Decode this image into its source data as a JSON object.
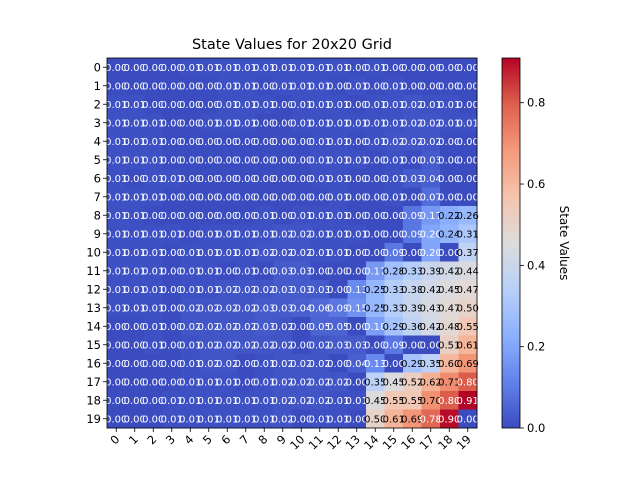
{
  "chart_data": {
    "type": "heatmap",
    "title": "State Values for 20x20 Grid",
    "x_ticks": [
      "0",
      "1",
      "2",
      "3",
      "4",
      "5",
      "6",
      "7",
      "8",
      "9",
      "10",
      "11",
      "12",
      "13",
      "14",
      "15",
      "16",
      "17",
      "18",
      "19"
    ],
    "y_ticks": [
      "0",
      "1",
      "2",
      "3",
      "4",
      "5",
      "6",
      "7",
      "8",
      "9",
      "10",
      "11",
      "12",
      "13",
      "14",
      "15",
      "16",
      "17",
      "18",
      "19"
    ],
    "colormap": "coolwarm",
    "vmin": 0.0,
    "vmax": 0.91,
    "colorbar": {
      "label": "State Values",
      "ticks": [
        0.0,
        0.2,
        0.4,
        0.6,
        0.8
      ],
      "tick_labels": [
        "0.0",
        "0.2",
        "0.4",
        "0.6",
        "0.8"
      ],
      "placement": "right"
    },
    "values": [
      [
        0.0,
        0.0,
        0.0,
        0.0,
        0.01,
        0.01,
        0.01,
        0.01,
        0.01,
        0.01,
        0.01,
        0.01,
        0.01,
        0.0,
        0.01,
        0.0,
        0.0,
        0.0,
        0.0,
        0.0
      ],
      [
        0.0,
        0.0,
        0.0,
        0.0,
        0.0,
        0.0,
        0.01,
        0.01,
        0.0,
        0.01,
        0.01,
        0.01,
        0.0,
        0.01,
        0.0,
        0.01,
        0.0,
        0.0,
        0.0,
        0.0
      ],
      [
        0.01,
        0.01,
        0.0,
        0.0,
        0.0,
        0.0,
        0.01,
        0.01,
        0.01,
        0.0,
        0.01,
        0.01,
        0.01,
        0.0,
        0.01,
        0.01,
        0.02,
        0.01,
        0.01,
        0.0
      ],
      [
        0.01,
        0.01,
        0.01,
        0.0,
        0.0,
        0.01,
        0.01,
        0.01,
        0.0,
        0.0,
        0.01,
        0.01,
        0.01,
        0.01,
        0.01,
        0.01,
        0.02,
        0.02,
        0.01,
        0.01
      ],
      [
        0.01,
        0.01,
        0.01,
        0.0,
        0.0,
        0.0,
        0.0,
        0.0,
        0.0,
        0.0,
        0.0,
        0.01,
        0.01,
        0.0,
        0.01,
        0.02,
        0.02,
        0.02,
        0.0,
        0.0
      ],
      [
        0.01,
        0.01,
        0.01,
        0.0,
        0.0,
        0.0,
        0.0,
        0.0,
        0.0,
        0.0,
        0.0,
        0.01,
        0.01,
        0.01,
        0.0,
        0.01,
        0.0,
        0.03,
        0.0,
        0.0
      ],
      [
        0.01,
        0.0,
        0.01,
        0.01,
        0.0,
        0.0,
        0.0,
        0.0,
        0.0,
        0.0,
        0.0,
        0.01,
        0.01,
        0.0,
        0.0,
        0.01,
        0.03,
        0.04,
        0.0,
        0.0
      ],
      [
        0.01,
        0.01,
        0.01,
        0.0,
        0.0,
        0.0,
        0.0,
        0.0,
        0.0,
        0.0,
        0.0,
        0.0,
        0.01,
        0.0,
        0.0,
        0.01,
        0.0,
        0.07,
        0.0,
        0.0
      ],
      [
        0.01,
        0.01,
        0.0,
        0.0,
        0.0,
        0.0,
        0.0,
        0.0,
        0.01,
        0.0,
        0.01,
        0.01,
        0.01,
        0.0,
        0.0,
        0.0,
        0.09,
        0.17,
        0.22,
        0.26
      ],
      [
        0.01,
        0.01,
        0.01,
        0.01,
        0.0,
        0.01,
        0.01,
        0.01,
        0.01,
        0.02,
        0.02,
        0.01,
        0.01,
        0.01,
        0.0,
        0.0,
        0.09,
        0.2,
        0.24,
        0.31
      ],
      [
        0.01,
        0.01,
        0.01,
        0.0,
        0.01,
        0.01,
        0.01,
        0.01,
        0.02,
        0.02,
        0.02,
        0.01,
        0.01,
        0.0,
        0.0,
        0.09,
        0.0,
        0.2,
        0.0,
        0.37
      ],
      [
        0.01,
        0.01,
        0.01,
        0.0,
        0.01,
        0.01,
        0.0,
        0.01,
        0.0,
        0.03,
        0.03,
        0.0,
        0.0,
        0.0,
        0.17,
        0.28,
        0.33,
        0.39,
        0.42,
        0.44
      ],
      [
        0.01,
        0.01,
        0.01,
        0.0,
        0.01,
        0.01,
        0.02,
        0.02,
        0.02,
        0.03,
        0.03,
        0.03,
        0.0,
        0.13,
        0.25,
        0.33,
        0.38,
        0.42,
        0.45,
        0.47
      ],
      [
        0.01,
        0.01,
        0.01,
        0.0,
        0.02,
        0.02,
        0.02,
        0.02,
        0.03,
        0.03,
        0.04,
        0.06,
        0.09,
        0.15,
        0.25,
        0.33,
        0.39,
        0.43,
        0.47,
        0.5
      ],
      [
        0.0,
        0.0,
        0.01,
        0.0,
        0.02,
        0.02,
        0.02,
        0.02,
        0.03,
        0.02,
        0.0,
        0.05,
        0.05,
        0.0,
        0.18,
        0.29,
        0.36,
        0.42,
        0.48,
        0.55
      ],
      [
        0.0,
        0.0,
        0.01,
        0.0,
        0.01,
        0.02,
        0.02,
        0.02,
        0.02,
        0.02,
        0.0,
        0.02,
        0.03,
        0.03,
        0.0,
        0.09,
        0.0,
        0.0,
        0.51,
        0.61
      ],
      [
        0.0,
        0.0,
        0.0,
        0.0,
        0.01,
        0.02,
        0.02,
        0.0,
        0.01,
        0.02,
        0.02,
        0.02,
        0.0,
        0.04,
        0.13,
        0.0,
        0.29,
        0.35,
        0.6,
        0.69
      ],
      [
        0.0,
        0.0,
        0.0,
        0.0,
        0.01,
        0.01,
        0.01,
        0.0,
        0.01,
        0.02,
        0.02,
        0.02,
        0.02,
        0.0,
        0.35,
        0.45,
        0.52,
        0.62,
        0.71,
        0.8
      ],
      [
        0.0,
        0.0,
        0.0,
        0.01,
        0.01,
        0.01,
        0.01,
        0.01,
        0.01,
        0.02,
        0.02,
        0.02,
        0.01,
        0.01,
        0.45,
        0.55,
        0.55,
        0.7,
        0.8,
        0.91
      ],
      [
        0.0,
        0.0,
        0.0,
        0.01,
        0.01,
        0.01,
        0.01,
        0.01,
        0.01,
        0.02,
        0.0,
        0.01,
        0.01,
        0.0,
        0.5,
        0.61,
        0.69,
        0.78,
        0.9,
        0.0
      ]
    ]
  }
}
